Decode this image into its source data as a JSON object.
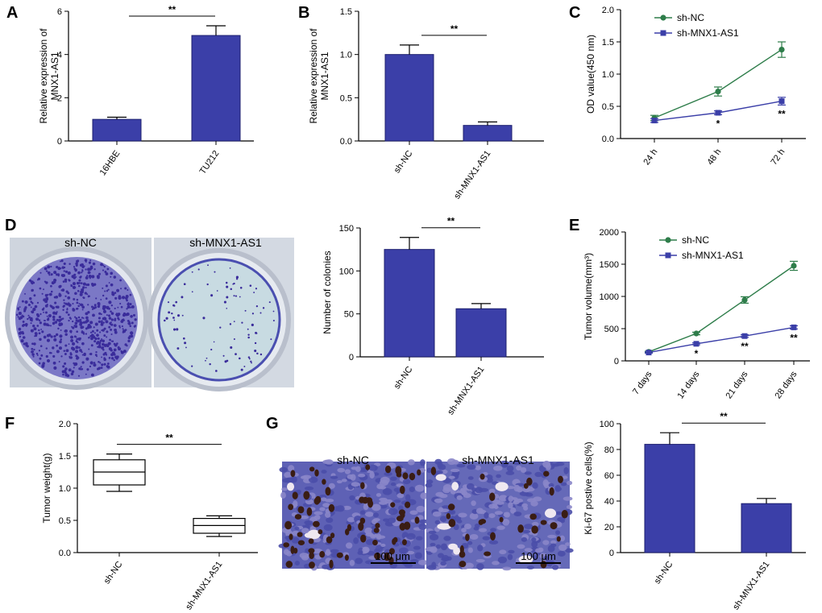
{
  "colors": {
    "bar": "#3b3fa8",
    "series_nc": "#2e7d4a",
    "series_kd": "#3b3fa8",
    "dish_rim": "#c7ccd6",
    "stain": "#3a2c9b",
    "tissue": "#5b5fb8",
    "nucleus": "#3a1d14"
  },
  "panels": {
    "A": "A",
    "B": "B",
    "C": "C",
    "D": "D",
    "E": "E",
    "F": "F",
    "G": "G"
  },
  "images": {
    "d_left": "sh-NC",
    "d_right": "sh-MNX1-AS1",
    "g_left": "sh-NC",
    "g_right": "sh-MNX1-AS1",
    "scale_left": "100 μm",
    "scale_right": "100 μm"
  },
  "chart_data": [
    {
      "id": "A",
      "type": "bar",
      "categories": [
        "16HBE",
        "TU212"
      ],
      "values": [
        1.0,
        4.88
      ],
      "errors": [
        0.1,
        0.45
      ],
      "ylabel": [
        "Relative expression of",
        "MNX1-AS1"
      ],
      "ylim": [
        0,
        6
      ],
      "yticks": [
        "0",
        "2",
        "4",
        "6"
      ],
      "significance": "**"
    },
    {
      "id": "B",
      "type": "bar",
      "categories": [
        "sh-NC",
        "sh-MNX1-AS1"
      ],
      "values": [
        1.0,
        0.18
      ],
      "errors": [
        0.11,
        0.04
      ],
      "ylabel": [
        "Relative expression of",
        "MNX1-AS1"
      ],
      "ylim": [
        0,
        1.5
      ],
      "yticks": [
        "0.0",
        "0.5",
        "1.0",
        "1.5"
      ],
      "significance": "**"
    },
    {
      "id": "C",
      "type": "line",
      "x": [
        "24 h",
        "48 h",
        "72 h"
      ],
      "series": [
        {
          "name": "sh-NC",
          "values": [
            0.32,
            0.73,
            1.38
          ],
          "errors": [
            0.04,
            0.07,
            0.12
          ]
        },
        {
          "name": "sh-MNX1-AS1",
          "values": [
            0.28,
            0.4,
            0.58
          ],
          "errors": [
            0.03,
            0.03,
            0.06
          ]
        }
      ],
      "ylabel": [
        "OD value(450 nm)"
      ],
      "ylim": [
        0,
        2.0
      ],
      "yticks": [
        "0.0",
        "0.5",
        "1.0",
        "1.5",
        "2.0"
      ],
      "point_marks": [
        "",
        "*",
        "**"
      ],
      "legend": "top-left"
    },
    {
      "id": "D",
      "type": "bar",
      "categories": [
        "sh-NC",
        "sh-MNX1-AS1"
      ],
      "values": [
        125,
        56
      ],
      "errors": [
        14,
        6
      ],
      "ylabel": [
        "Number of colonies"
      ],
      "ylim": [
        0,
        150
      ],
      "yticks": [
        "0",
        "50",
        "100",
        "150"
      ],
      "significance": "**"
    },
    {
      "id": "E",
      "type": "line",
      "x": [
        "7 days",
        "14 days",
        "21 days",
        "28 days"
      ],
      "series": [
        {
          "name": "sh-NC",
          "values": [
            140,
            425,
            945,
            1475
          ],
          "errors": [
            10,
            20,
            50,
            70
          ]
        },
        {
          "name": "sh-MNX1-AS1",
          "values": [
            130,
            265,
            385,
            520
          ],
          "errors": [
            10,
            15,
            20,
            25
          ]
        }
      ],
      "ylabel": [
        "Tumor volume(mm³)"
      ],
      "ylim": [
        0,
        2000
      ],
      "yticks": [
        "0",
        "500",
        "1000",
        "1500",
        "2000"
      ],
      "point_marks": [
        "",
        "*",
        "**",
        "**"
      ],
      "legend": "top-left"
    },
    {
      "id": "F",
      "type": "box",
      "categories": [
        "sh-NC",
        "sh-MNX1-AS1"
      ],
      "boxes": [
        {
          "min": 0.95,
          "q1": 1.05,
          "median": 1.25,
          "q3": 1.44,
          "max": 1.53
        },
        {
          "min": 0.25,
          "q1": 0.3,
          "median": 0.42,
          "q3": 0.53,
          "max": 0.57
        }
      ],
      "ylabel": [
        "Tumor weight(g)"
      ],
      "ylim": [
        0,
        2.0
      ],
      "yticks": [
        "0.0",
        "0.5",
        "1.0",
        "1.5",
        "2.0"
      ],
      "significance": "**"
    },
    {
      "id": "G",
      "type": "bar",
      "categories": [
        "sh-NC",
        "sh-MNX1-AS1"
      ],
      "values": [
        84,
        38
      ],
      "errors": [
        9,
        4
      ],
      "ylabel": [
        "Ki-67 postive cells(%)"
      ],
      "ylim": [
        0,
        100
      ],
      "yticks": [
        "0",
        "20",
        "40",
        "60",
        "80",
        "100"
      ],
      "significance": "**"
    }
  ]
}
